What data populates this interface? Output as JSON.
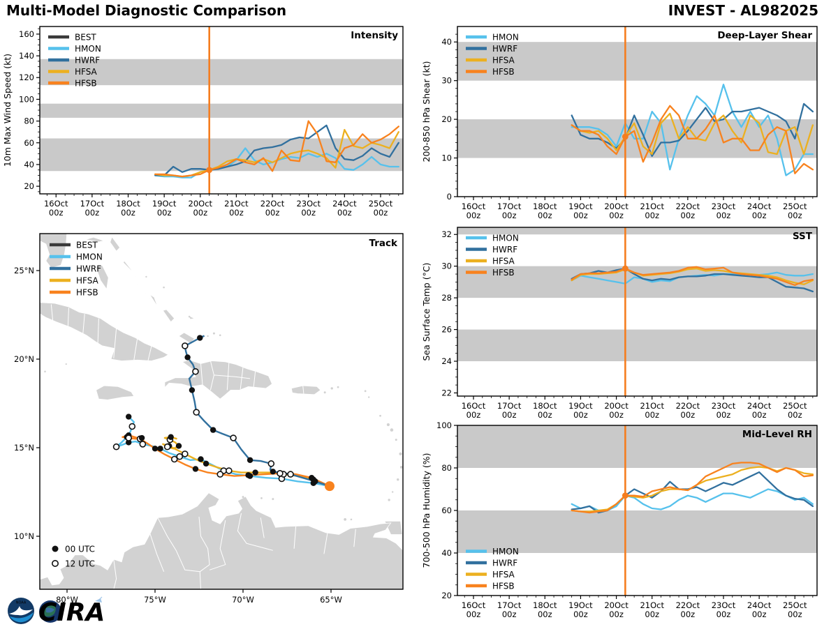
{
  "header": {
    "title_left": "Multi-Model Diagnostic Comparison",
    "title_right": "INVEST - AL982025"
  },
  "colors": {
    "BEST": "#3a3a3a",
    "HMON": "#56c1ec",
    "HWRF": "#31709e",
    "HFSA": "#ecb01f",
    "HFSB": "#f8821e",
    "init": "#f57d1f",
    "band": "#c9c9c9",
    "land": "#d2d2d2",
    "map_border": "#ffffff"
  },
  "time_axis": {
    "xlim": [
      15.55,
      25.62
    ],
    "init_time": 20.25,
    "minor_step": 0.25,
    "x_ticks": [
      {
        "t": 16,
        "line1": "16Oct",
        "line2": "00z"
      },
      {
        "t": 17,
        "line1": "17Oct",
        "line2": "00z"
      },
      {
        "t": 18,
        "line1": "18Oct",
        "line2": "00z"
      },
      {
        "t": 19,
        "line1": "19Oct",
        "line2": "00z"
      },
      {
        "t": 20,
        "line1": "20Oct",
        "line2": "00z"
      },
      {
        "t": 21,
        "line1": "21Oct",
        "line2": "00z"
      },
      {
        "t": 22,
        "line1": "22Oct",
        "line2": "00z"
      },
      {
        "t": 23,
        "line1": "23Oct",
        "line2": "00z"
      },
      {
        "t": 24,
        "line1": "24Oct",
        "line2": "00z"
      },
      {
        "t": 25,
        "line1": "25Oct",
        "line2": "00z"
      }
    ]
  },
  "chart_data": [
    {
      "id": "intensity",
      "type": "line",
      "title": "Intensity",
      "ylabel": "10m Max Wind Speed (kt)",
      "ylim": [
        13,
        167
      ],
      "yticks": [
        20,
        40,
        60,
        80,
        100,
        120,
        140,
        160
      ],
      "y_minor_step": 5,
      "shaded_bands": [
        [
          34,
          64
        ],
        [
          83,
          96
        ],
        [
          113,
          137
        ]
      ],
      "legend": [
        "BEST",
        "HMON",
        "HWRF",
        "HFSA",
        "HFSB"
      ],
      "legend_pos": "upper-left",
      "x_start": 18.75,
      "x_step": 0.25,
      "x_unit": "day of October, 00z ticks",
      "init_marker_y": 35,
      "series": {
        "BEST": [],
        "HMON": [
          30,
          29,
          29,
          28,
          28,
          33,
          35,
          36,
          38,
          44,
          55,
          44,
          40,
          42,
          45,
          47,
          46,
          50,
          47,
          50,
          46,
          36,
          35,
          40,
          47,
          40,
          38,
          38
        ],
        "HWRF": [
          30,
          30,
          38,
          33,
          36,
          36,
          35,
          36,
          38,
          40,
          43,
          53,
          55,
          56,
          58,
          63,
          65,
          64,
          70,
          76,
          55,
          45,
          44,
          48,
          55,
          50,
          47,
          60
        ],
        "HFSA": [
          31,
          30,
          30,
          29,
          30,
          33,
          35,
          38,
          43,
          45,
          44,
          42,
          45,
          42,
          46,
          50,
          52,
          53,
          50,
          46,
          37,
          72,
          57,
          55,
          60,
          58,
          55,
          70
        ],
        "HFSB": [
          31,
          31,
          30,
          29,
          30,
          31,
          35,
          37,
          40,
          45,
          42,
          40,
          46,
          34,
          53,
          44,
          43,
          80,
          68,
          43,
          42,
          55,
          58,
          68,
          60,
          63,
          68,
          75
        ]
      }
    },
    {
      "id": "shear",
      "type": "line",
      "title": "Deep-Layer Shear",
      "ylabel": "200-850 hPa Shear (kt)",
      "ylim": [
        0,
        44
      ],
      "yticks": [
        0,
        10,
        20,
        30,
        40
      ],
      "y_minor_step": 2,
      "shaded_bands": [
        [
          10,
          20
        ],
        [
          30,
          40
        ]
      ],
      "legend": [
        "HMON",
        "HWRF",
        "HFSA",
        "HFSB"
      ],
      "legend_pos": "upper-left",
      "x_start": 18.75,
      "x_step": 0.25,
      "x_unit": "day of October, 00z ticks",
      "init_marker_y": 15.5,
      "series": {
        "HMON": [
          18,
          18,
          18,
          17.5,
          16,
          13,
          19,
          15,
          15,
          22,
          19,
          7,
          15,
          21,
          26,
          24,
          21,
          29,
          22,
          18,
          22,
          18,
          21,
          15,
          5.5,
          7,
          11,
          11
        ],
        "HWRF": [
          21,
          16,
          15,
          15,
          14,
          12.5,
          15,
          21,
          16,
          10.5,
          14,
          14,
          14.5,
          17,
          20,
          23,
          19.5,
          20,
          22,
          22,
          22.5,
          23,
          22,
          21,
          19.5,
          15,
          24,
          22
        ],
        "HFSA": [
          18.5,
          17,
          16.5,
          17,
          15,
          12,
          15.5,
          19,
          13,
          11,
          19,
          21.5,
          15,
          18,
          15,
          14.5,
          19,
          21,
          17,
          14,
          21,
          19,
          11.5,
          11,
          17,
          18,
          11,
          18.5
        ],
        "HFSB": [
          18.5,
          17,
          17,
          16,
          13,
          11,
          15.5,
          17,
          9,
          14,
          20,
          23.5,
          21,
          15,
          15,
          17.5,
          21,
          14,
          15,
          15,
          12,
          12,
          16,
          18,
          17,
          6,
          8.5,
          7
        ]
      }
    },
    {
      "id": "sst",
      "type": "line",
      "title": "SST",
      "ylabel": "Sea Surface Temp (°C)",
      "ylim": [
        21.8,
        32.45
      ],
      "yticks": [
        22,
        24,
        26,
        28,
        30,
        32
      ],
      "y_minor_step": 0.5,
      "shaded_bands": [
        [
          24,
          26
        ],
        [
          28,
          30
        ],
        [
          32,
          32.45
        ]
      ],
      "legend": [
        "HMON",
        "HWRF",
        "HFSA",
        "HFSB"
      ],
      "legend_pos": "upper-left",
      "x_start": 18.75,
      "x_step": 0.25,
      "x_unit": "day of October, 00z ticks",
      "init_marker_y": 29.85,
      "series": {
        "HMON": [
          29.1,
          29.4,
          29.3,
          29.2,
          29.1,
          29.0,
          28.9,
          29.3,
          29.2,
          29.0,
          29.1,
          29.05,
          29.3,
          29.35,
          29.4,
          29.45,
          29.4,
          29.5,
          29.5,
          29.45,
          29.4,
          29.45,
          29.5,
          29.6,
          29.45,
          29.4,
          29.4,
          29.5
        ],
        "HWRF": [
          29.2,
          29.5,
          29.55,
          29.7,
          29.6,
          29.75,
          29.85,
          29.5,
          29.2,
          29.1,
          29.2,
          29.15,
          29.3,
          29.35,
          29.35,
          29.4,
          29.5,
          29.5,
          29.45,
          29.4,
          29.35,
          29.3,
          29.3,
          29.0,
          28.7,
          28.65,
          28.6,
          28.4
        ],
        "HFSA": [
          29.1,
          29.45,
          29.5,
          29.5,
          29.55,
          29.6,
          29.8,
          29.6,
          29.4,
          29.45,
          29.5,
          29.55,
          29.65,
          29.8,
          29.85,
          29.7,
          29.75,
          29.7,
          29.6,
          29.55,
          29.5,
          29.45,
          29.4,
          29.3,
          29.1,
          28.95,
          28.85,
          29.1
        ],
        "HFSB": [
          29.15,
          29.5,
          29.55,
          29.55,
          29.6,
          29.65,
          29.85,
          29.6,
          29.45,
          29.5,
          29.55,
          29.6,
          29.7,
          29.9,
          29.95,
          29.8,
          29.85,
          29.9,
          29.6,
          29.5,
          29.45,
          29.4,
          29.3,
          29.2,
          29.0,
          28.8,
          29.05,
          29.15
        ]
      }
    },
    {
      "id": "rh",
      "type": "line",
      "title": "Mid-Level RH",
      "ylabel": "700-500 hPa Humidity (%)",
      "ylim": [
        20,
        100
      ],
      "yticks": [
        20,
        40,
        60,
        80,
        100
      ],
      "y_minor_step": 5,
      "shaded_bands": [
        [
          40,
          60
        ],
        [
          80,
          100
        ]
      ],
      "legend": [
        "HMON",
        "HWRF",
        "HFSA",
        "HFSB"
      ],
      "legend_pos": "lower-left",
      "x_start": 18.75,
      "x_step": 0.25,
      "x_unit": "day of October, 00z ticks",
      "init_marker_y": 67,
      "series": {
        "HMON": [
          63,
          61,
          62,
          60,
          60,
          62,
          67,
          66,
          63,
          61,
          60.5,
          62,
          65,
          67,
          66,
          64,
          66,
          68,
          68,
          67,
          66,
          68,
          70,
          69,
          67,
          65,
          66,
          63
        ],
        "HWRF": [
          60.5,
          61,
          62,
          59,
          60,
          63,
          67,
          70,
          68,
          66,
          69,
          73.5,
          70,
          70,
          71,
          69,
          71,
          73,
          72,
          74,
          76,
          78,
          74,
          70,
          67,
          65.5,
          65,
          62
        ],
        "HFSA": [
          60,
          59.5,
          59.5,
          60,
          60.5,
          63,
          67,
          66.5,
          66,
          67,
          69,
          70,
          70,
          69.5,
          72,
          74,
          75,
          76,
          77,
          79,
          80,
          80.5,
          80,
          78.5,
          80,
          79,
          77.5,
          77
        ],
        "HFSB": [
          60,
          59.5,
          59,
          59.5,
          60,
          63,
          67,
          67,
          66.5,
          69,
          70,
          71,
          70,
          69.5,
          72,
          76,
          78,
          80,
          82,
          82.5,
          82.5,
          82,
          80,
          78,
          80,
          79,
          76,
          76.5
        ]
      }
    },
    {
      "id": "track",
      "type": "track-map",
      "title": "Track",
      "legend": [
        "BEST",
        "HMON",
        "HWRF",
        "HFSA",
        "HFSB"
      ],
      "lon_ticks": [
        {
          "v": -80,
          "label": "80°W"
        },
        {
          "v": -75,
          "label": "75°W"
        },
        {
          "v": -70,
          "label": "70°W"
        },
        {
          "v": -65,
          "label": "65°W"
        }
      ],
      "lat_ticks": [
        {
          "v": 10,
          "label": "10°N"
        },
        {
          "v": 15,
          "label": "15°N"
        },
        {
          "v": 20,
          "label": "20°N"
        },
        {
          "v": 25,
          "label": "25°N"
        }
      ],
      "marker_legend": [
        {
          "type": "filled",
          "label": "00 UTC"
        },
        {
          "type": "open",
          "label": "12 UTC"
        }
      ],
      "start_marker": [
        -65.08,
        12.83
      ],
      "tracks": {
        "BEST": [],
        "HMON": [
          [
            -65.08,
            12.83
          ],
          [
            -66.0,
            13.0
          ],
          [
            -66.9,
            13.1
          ],
          [
            -67.8,
            13.25
          ],
          [
            -68.7,
            13.3
          ],
          [
            -69.6,
            13.4
          ],
          [
            -70.4,
            13.5
          ],
          [
            -71.1,
            13.7
          ],
          [
            -71.8,
            14.05
          ],
          [
            -72.4,
            14.35
          ],
          [
            -73.0,
            14.3
          ],
          [
            -73.6,
            14.5
          ],
          [
            -74.2,
            14.7
          ],
          [
            -74.7,
            14.95
          ],
          [
            -75.2,
            15.1
          ],
          [
            -75.7,
            15.2
          ],
          [
            -76.1,
            15.35
          ],
          [
            -76.5,
            15.3
          ],
          [
            -76.9,
            15.15
          ],
          [
            -77.2,
            15.05
          ],
          [
            -76.9,
            15.3
          ],
          [
            -76.6,
            15.6
          ],
          [
            -76.4,
            15.9
          ],
          [
            -76.3,
            16.2
          ],
          [
            -76.2,
            16.45
          ],
          [
            -76.5,
            16.75
          ]
        ],
        "HWRF": [
          [
            -65.08,
            12.83
          ],
          [
            -65.9,
            13.1
          ],
          [
            -66.6,
            13.3
          ],
          [
            -67.3,
            13.5
          ],
          [
            -67.9,
            13.6
          ],
          [
            -68.3,
            13.65
          ],
          [
            -68.45,
            13.75
          ],
          [
            -68.4,
            14.1
          ],
          [
            -69.0,
            14.25
          ],
          [
            -69.6,
            14.3
          ],
          [
            -70.1,
            14.9
          ],
          [
            -70.55,
            15.55
          ],
          [
            -71.2,
            15.8
          ],
          [
            -71.7,
            16.0
          ],
          [
            -72.2,
            16.5
          ],
          [
            -72.65,
            17.0
          ],
          [
            -72.75,
            17.6
          ],
          [
            -72.9,
            18.25
          ],
          [
            -73.05,
            18.9
          ],
          [
            -72.7,
            19.3
          ],
          [
            -72.85,
            19.7
          ],
          [
            -73.15,
            20.1
          ],
          [
            -73.25,
            20.45
          ],
          [
            -73.3,
            20.75
          ],
          [
            -73.0,
            20.9
          ],
          [
            -72.45,
            21.2
          ],
          [
            -72.2,
            21.32
          ]
        ],
        "HFSA": [
          [
            -65.08,
            12.83
          ],
          [
            -66.0,
            13.2
          ],
          [
            -66.9,
            13.4
          ],
          [
            -67.7,
            13.5
          ],
          [
            -68.5,
            13.6
          ],
          [
            -69.3,
            13.6
          ],
          [
            -70.1,
            13.6
          ],
          [
            -70.8,
            13.7
          ],
          [
            -71.5,
            13.9
          ],
          [
            -72.1,
            14.1
          ],
          [
            -72.7,
            14.35
          ],
          [
            -73.3,
            14.65
          ],
          [
            -73.8,
            14.9
          ],
          [
            -74.2,
            15.1
          ],
          [
            -74.55,
            15.2
          ],
          [
            -74.3,
            15.05
          ],
          [
            -73.95,
            14.95
          ],
          [
            -73.65,
            15.1
          ],
          [
            -73.85,
            15.3
          ],
          [
            -74.15,
            15.45
          ],
          [
            -74.45,
            15.55
          ],
          [
            -74.1,
            15.6
          ],
          [
            -73.75,
            15.5
          ]
        ],
        "HFSB": [
          [
            -65.08,
            12.83
          ],
          [
            -66.1,
            13.3
          ],
          [
            -67.0,
            13.5
          ],
          [
            -67.9,
            13.55
          ],
          [
            -68.8,
            13.5
          ],
          [
            -69.7,
            13.45
          ],
          [
            -70.5,
            13.4
          ],
          [
            -71.3,
            13.5
          ],
          [
            -72.0,
            13.6
          ],
          [
            -72.7,
            13.8
          ],
          [
            -73.3,
            14.05
          ],
          [
            -73.9,
            14.35
          ],
          [
            -74.5,
            14.65
          ],
          [
            -75.0,
            14.95
          ],
          [
            -75.45,
            15.25
          ],
          [
            -75.85,
            15.5
          ],
          [
            -76.15,
            15.6
          ],
          [
            -76.5,
            15.7
          ],
          [
            -76.85,
            15.6
          ],
          [
            -76.5,
            15.55
          ],
          [
            -76.1,
            15.5
          ],
          [
            -75.75,
            15.55
          ]
        ]
      }
    }
  ],
  "footer": {
    "noaa_text": "NOAA",
    "cira_text": "CIRA"
  }
}
